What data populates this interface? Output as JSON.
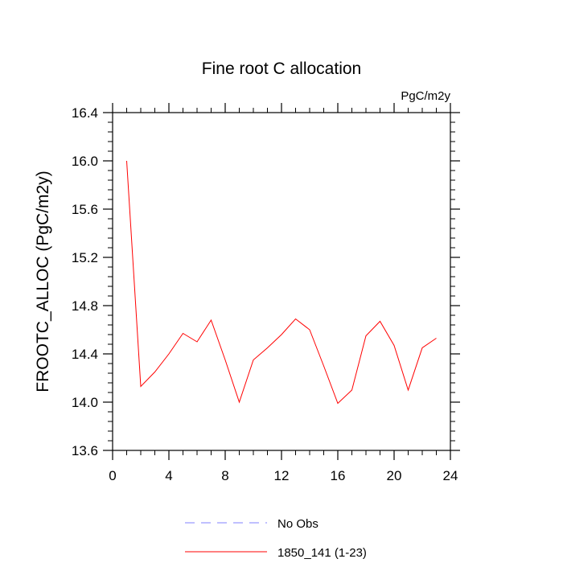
{
  "chart_data": {
    "type": "line",
    "title": "Fine root C allocation",
    "units_label": "PgC/m2y",
    "ylabel": "FROOTC_ALLOC  (PgC/m2y)",
    "xlabel": "",
    "xlim": [
      0,
      24
    ],
    "ylim": [
      13.6,
      16.4
    ],
    "x_ticks": [
      0,
      4,
      8,
      12,
      16,
      20,
      24
    ],
    "y_ticks": [
      13.6,
      14.0,
      14.4,
      14.8,
      15.2,
      15.6,
      16.0,
      16.4
    ],
    "x_tick_labels": [
      "0",
      "4",
      "8",
      "12",
      "16",
      "20",
      "24"
    ],
    "y_tick_labels": [
      "13.6",
      "14.0",
      "14.4",
      "14.8",
      "15.2",
      "15.6",
      "16.0",
      "16.4"
    ],
    "grid": false,
    "legend_position": "bottom",
    "series": [
      {
        "name": "No Obs",
        "color": "#8080ff",
        "dashed": true,
        "x": [],
        "y": []
      },
      {
        "name": "1850_141 (1-23)",
        "color": "#ff0000",
        "dashed": false,
        "x": [
          1,
          2,
          3,
          4,
          5,
          6,
          7,
          8,
          9,
          10,
          11,
          12,
          13,
          14,
          15,
          16,
          17,
          18,
          19,
          20,
          21,
          22,
          23
        ],
        "y": [
          16.0,
          14.13,
          14.25,
          14.4,
          14.57,
          14.5,
          14.68,
          14.35,
          14.0,
          14.35,
          14.45,
          14.56,
          14.69,
          14.6,
          14.3,
          13.99,
          14.1,
          14.55,
          14.67,
          14.47,
          14.1,
          14.45,
          14.53
        ]
      }
    ]
  }
}
